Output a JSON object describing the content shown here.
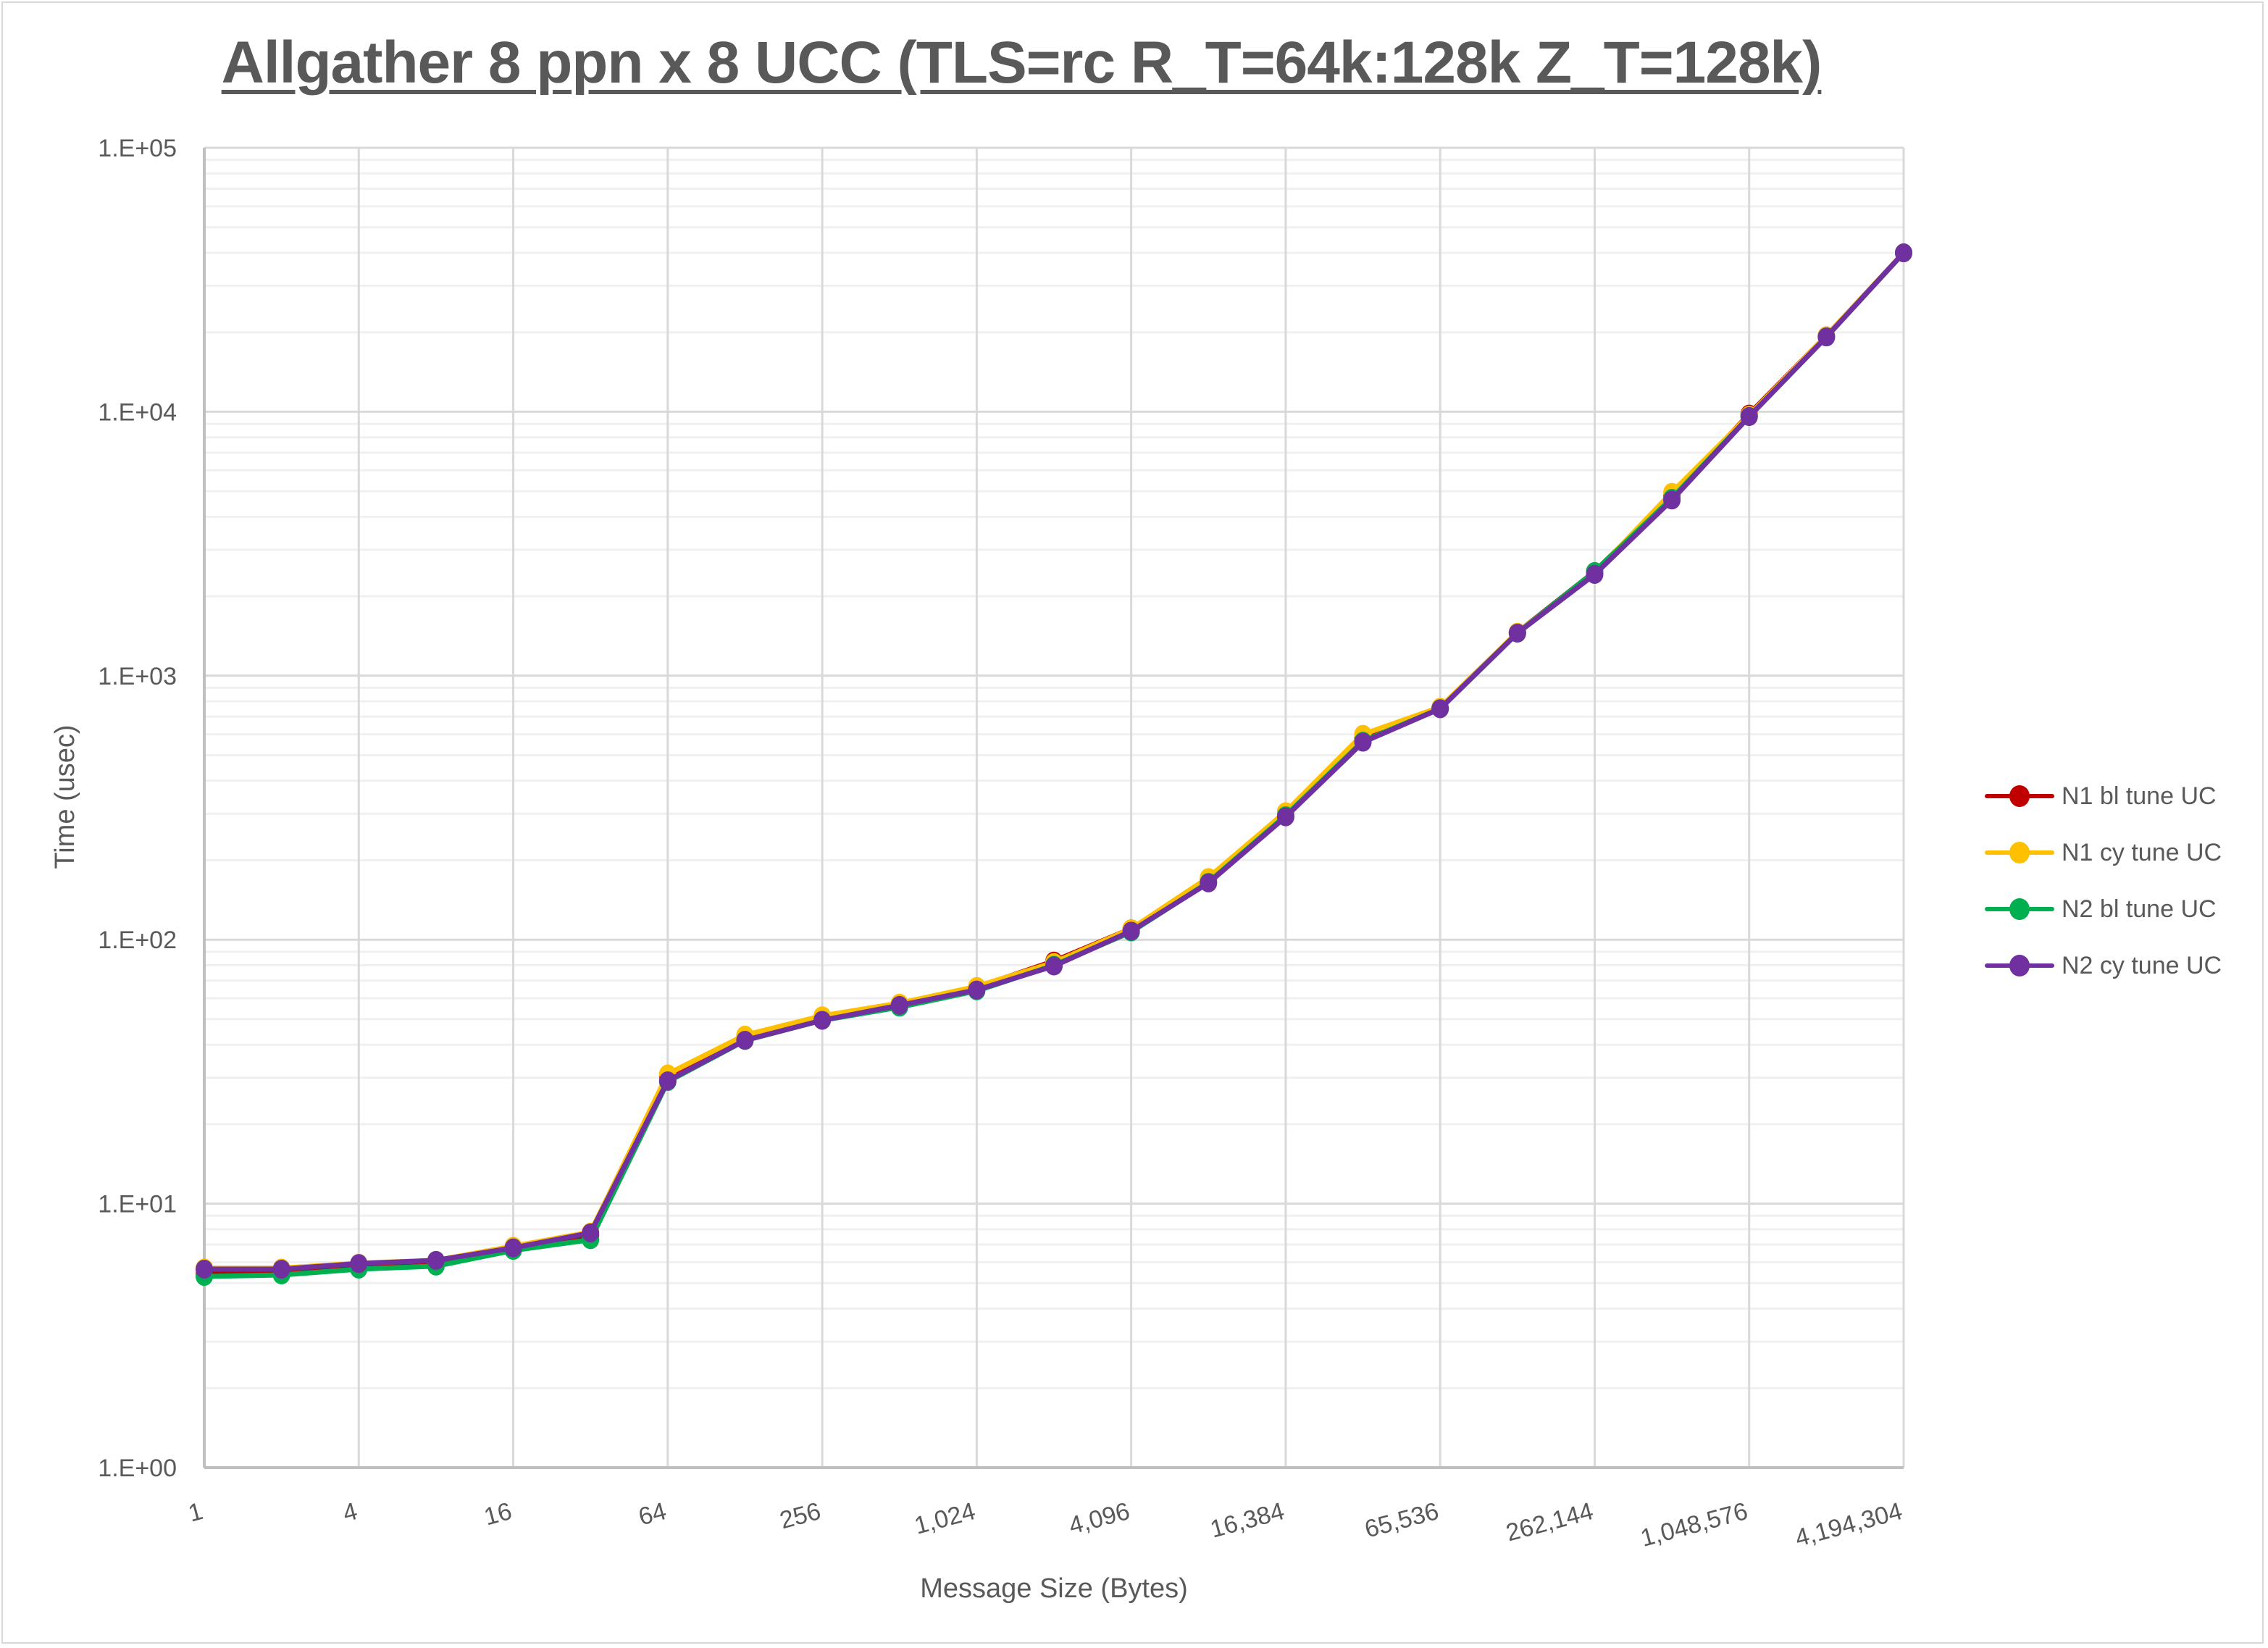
{
  "chart_data": {
    "type": "line",
    "title": "Allgather 8 ppn x 8 UCC (TLS=rc R_T=64k:128k Z_T=128k)",
    "xlabel": "Message Size (Bytes)",
    "ylabel": "Time (usec)",
    "yscale": "log",
    "xscale": "log2",
    "ylim": [
      1,
      100000
    ],
    "grid": true,
    "legend_position": "right",
    "x": [
      1,
      2,
      4,
      8,
      16,
      32,
      64,
      128,
      256,
      512,
      1024,
      2048,
      4096,
      8192,
      16384,
      32768,
      65536,
      131072,
      262144,
      524288,
      1048576,
      2097152,
      4194304
    ],
    "x_tick_labels": [
      "1",
      "4",
      "16",
      "64",
      "256",
      "1,024",
      "4,096",
      "16,384",
      "65,536",
      "262,144",
      "1,048,576",
      "4,194,304"
    ],
    "y_tick_labels": [
      "1.E+00",
      "1.E+01",
      "1.E+02",
      "1.E+03",
      "1.E+04",
      "1.E+05"
    ],
    "series": [
      {
        "name": "N1 bl tune UC",
        "color": "#c00000",
        "values": [
          5.4,
          5.45,
          5.7,
          5.85,
          6.8,
          7.6,
          30.5,
          43,
          51,
          57,
          66,
          83,
          110,
          170,
          305,
          580,
          755,
          1460,
          2480,
          4800,
          9800,
          19400,
          40000
        ]
      },
      {
        "name": "N1 cy tune UC",
        "color": "#ffc000",
        "values": [
          5.7,
          5.7,
          5.95,
          6.1,
          6.9,
          7.8,
          31,
          43.5,
          51.5,
          57.5,
          66.5,
          82,
          110,
          172,
          305,
          600,
          760,
          1460,
          2450,
          4950,
          9700,
          19400,
          40000
        ]
      },
      {
        "name": "N2 bl tune UC",
        "color": "#00b050",
        "values": [
          5.3,
          5.37,
          5.65,
          5.8,
          6.65,
          7.3,
          29,
          41.5,
          49.5,
          55.5,
          64,
          80,
          107,
          165,
          295,
          565,
          750,
          1450,
          2480,
          4700,
          9600,
          19200,
          40000
        ]
      },
      {
        "name": "N2 cy tune UC",
        "color": "#7030a0",
        "values": [
          5.65,
          5.65,
          5.93,
          6.1,
          6.8,
          7.75,
          29.2,
          41.6,
          49.5,
          56.4,
          64.5,
          79.5,
          107.8,
          164,
          292,
          560,
          750,
          1450,
          2420,
          4630,
          9590,
          19200,
          40000
        ]
      }
    ]
  }
}
